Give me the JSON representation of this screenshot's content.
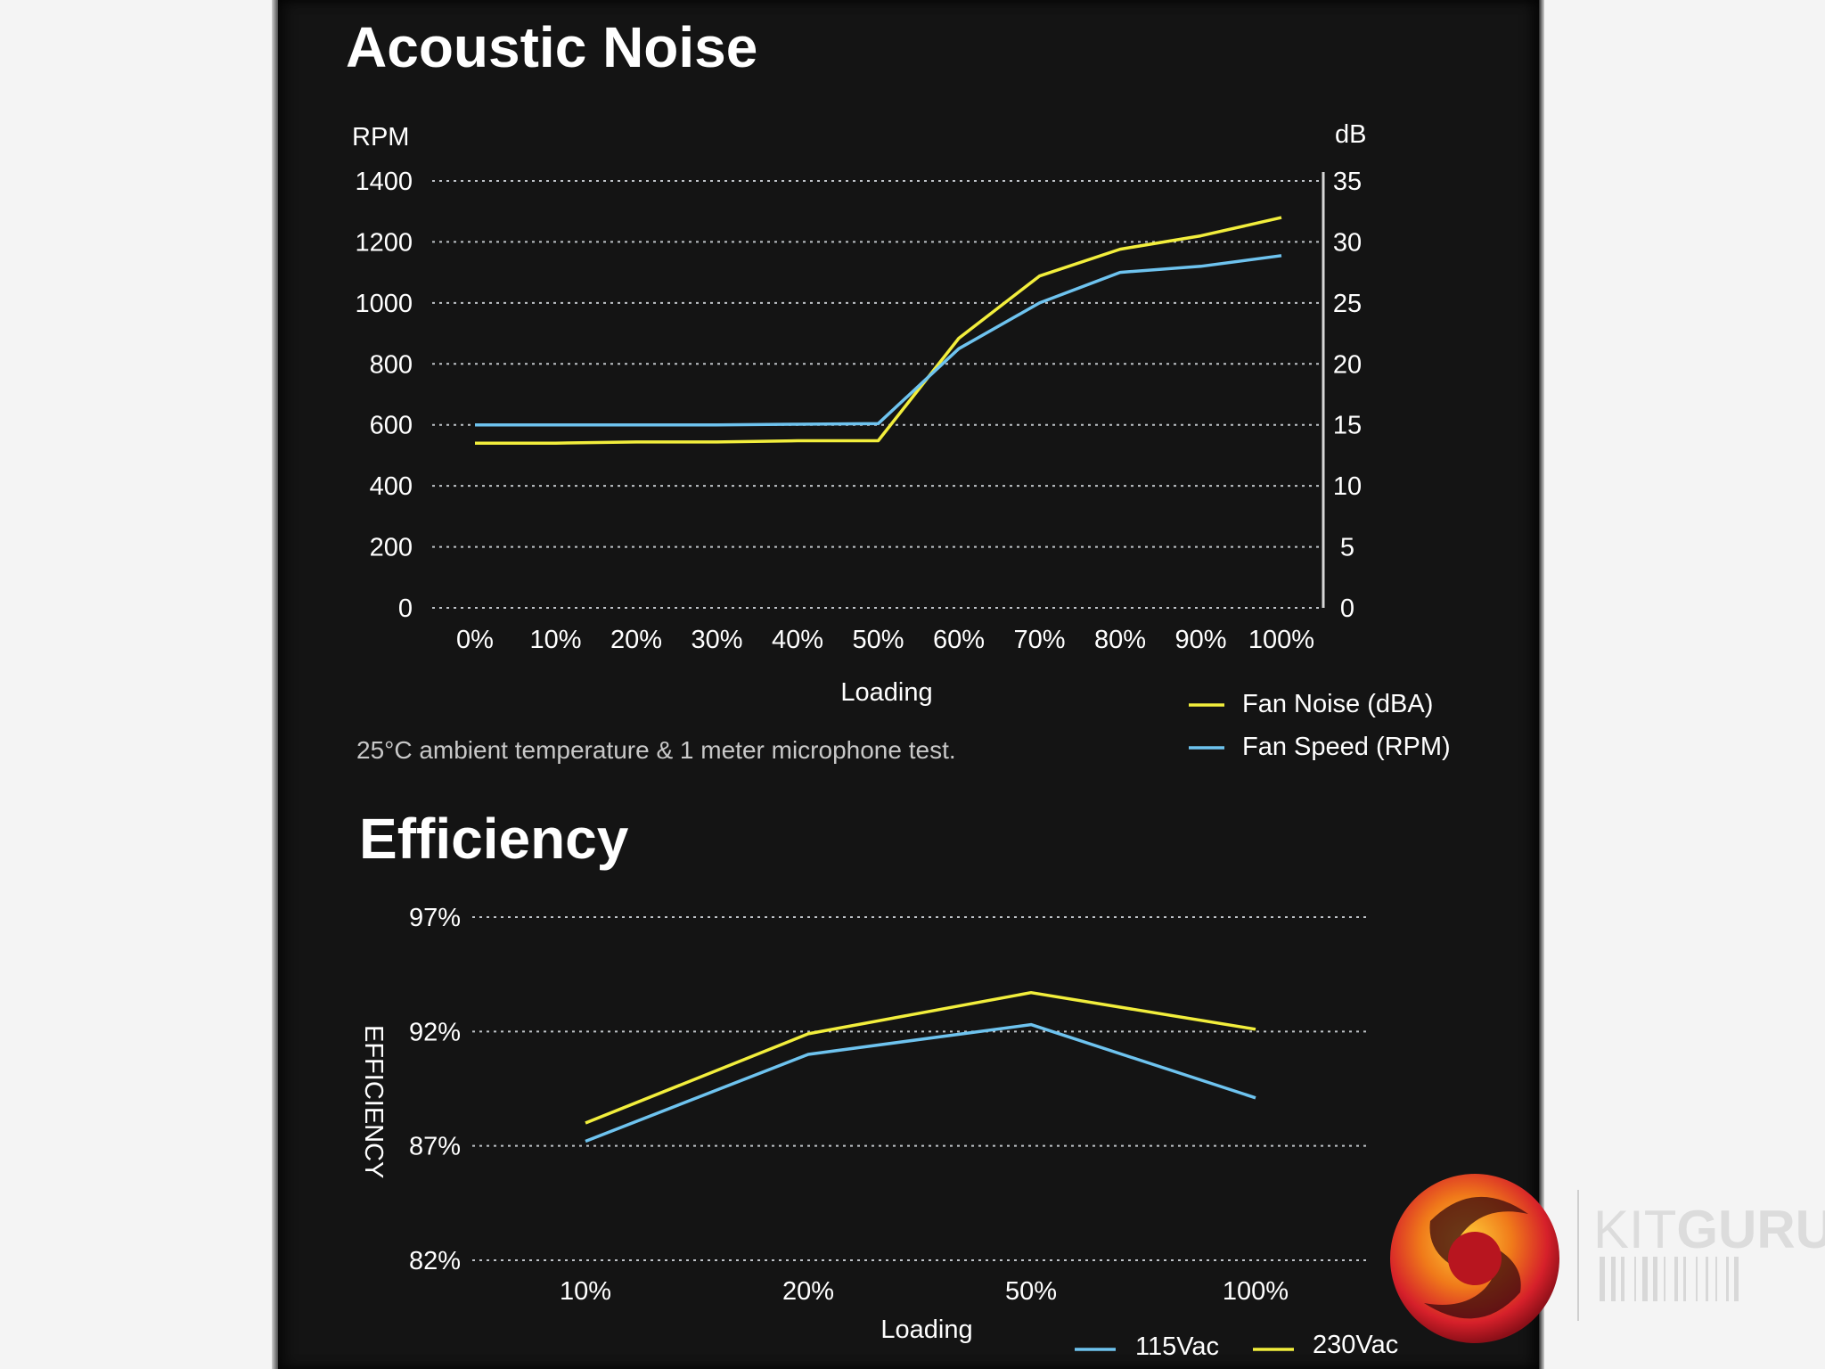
{
  "watermark": {
    "brand_light": "KIT",
    "brand_bold": "GURU"
  },
  "chart_data": [
    {
      "type": "line",
      "title": "Acoustic Noise",
      "xlabel": "Loading",
      "ylabel_left": "RPM",
      "ylabel_right": "dB",
      "categories": [
        "0%",
        "10%",
        "20%",
        "30%",
        "40%",
        "50%",
        "60%",
        "70%",
        "80%",
        "90%",
        "100%"
      ],
      "yticks_left": [
        "0",
        "200",
        "400",
        "600",
        "800",
        "1000",
        "1200",
        "1400"
      ],
      "yticks_right": [
        "0",
        "5",
        "10",
        "15",
        "20",
        "25",
        "30",
        "35"
      ],
      "ylim_left": [
        0,
        1400
      ],
      "ylim_right": [
        0,
        35
      ],
      "grid": true,
      "legend_position": "bottom-right",
      "note": "25°C ambient temperature & 1 meter microphone test.",
      "series": [
        {
          "name": "Fan Noise (dBA)",
          "axis": "right",
          "color": "#f2ee3c",
          "values": [
            13.5,
            13.5,
            13.6,
            13.6,
            13.7,
            13.7,
            22.1,
            27.2,
            29.4,
            30.5,
            32.0
          ]
        },
        {
          "name": "Fan Speed (RPM)",
          "axis": "left",
          "color": "#6ec3ef",
          "values": [
            600,
            600,
            600,
            600,
            602,
            604,
            850,
            1000,
            1100,
            1120,
            1155
          ]
        }
      ]
    },
    {
      "type": "line",
      "title": "Efficiency",
      "xlabel": "Loading",
      "ylabel": "EFFICIENCY",
      "categories": [
        "10%",
        "20%",
        "50%",
        "100%"
      ],
      "yticks": [
        "82%",
        "87%",
        "92%",
        "97%"
      ],
      "ylim": [
        82,
        97
      ],
      "grid": true,
      "legend_position": "bottom-right",
      "series": [
        {
          "name": "115Vac",
          "color": "#6ec3ef",
          "values": [
            87.2,
            91.0,
            92.3,
            89.1
          ]
        },
        {
          "name": "230Vac",
          "color": "#f2ee3c",
          "values": [
            88.0,
            91.9,
            93.7,
            92.1
          ]
        }
      ]
    }
  ]
}
